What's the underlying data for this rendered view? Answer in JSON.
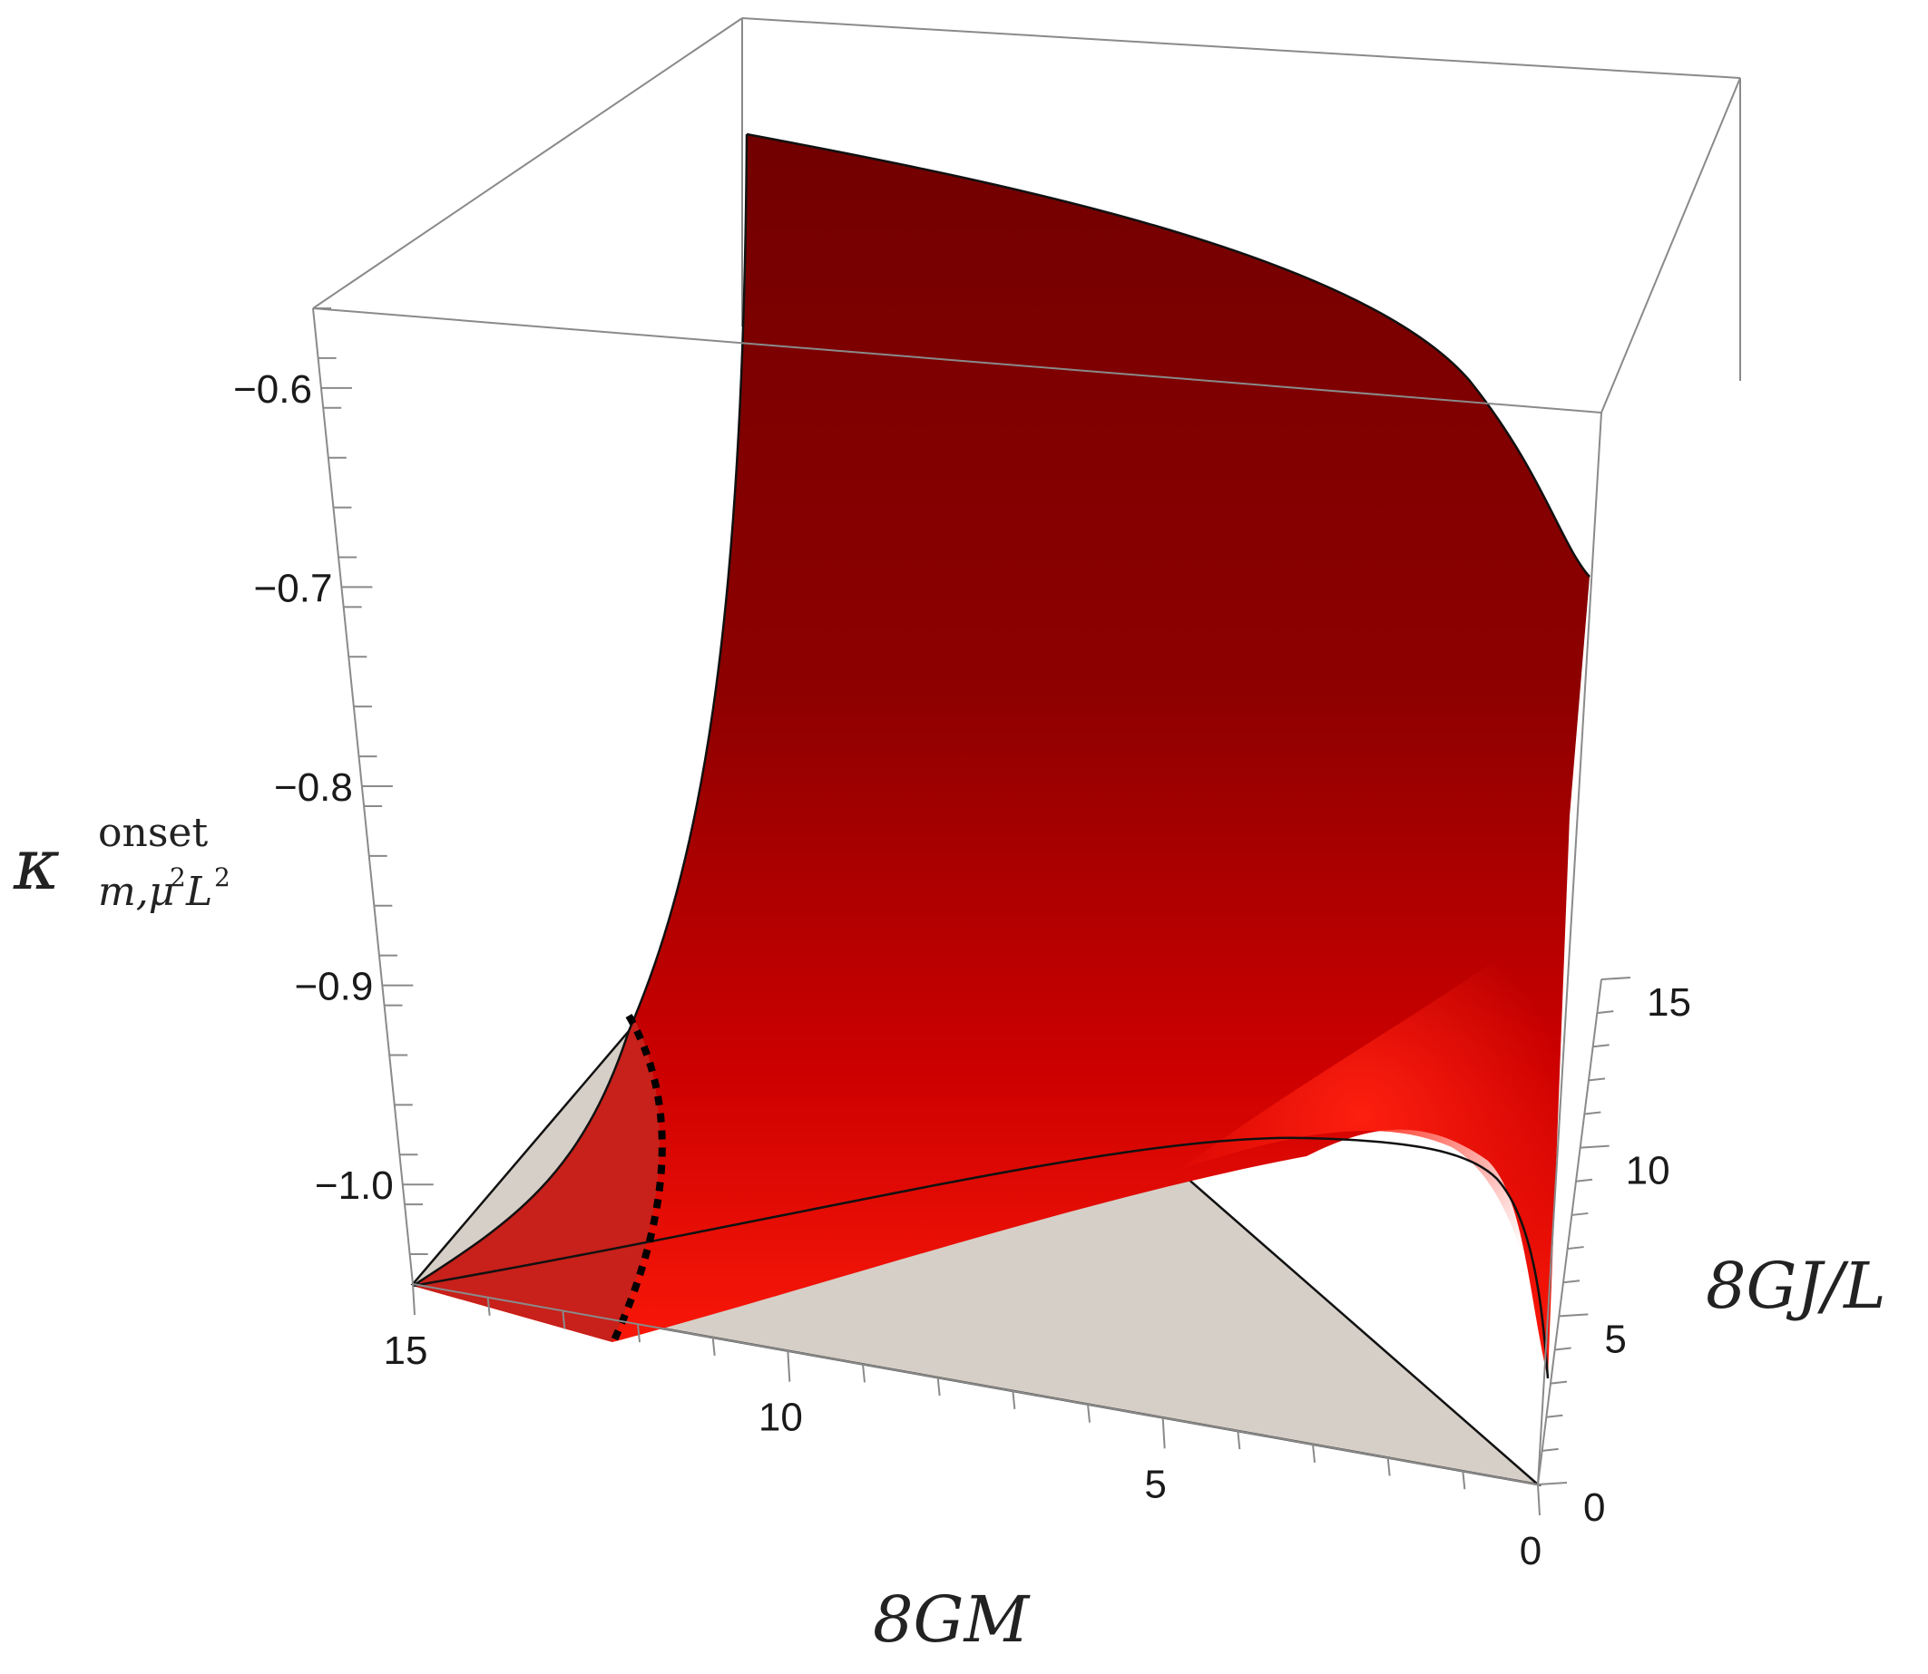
{
  "chart_data": {
    "type": "surface3d",
    "title": "",
    "axes": {
      "x": {
        "label": "8GM",
        "range": [
          0,
          15
        ],
        "ticks": [
          "0",
          "5",
          "10",
          "15"
        ]
      },
      "y": {
        "label": "8GJ/L",
        "range": [
          0,
          15
        ],
        "ticks": [
          "0",
          "5",
          "10",
          "15"
        ]
      },
      "z": {
        "label_symbol": "κ",
        "label_superscript": "onset",
        "label_subscript_var": "m,μ",
        "label_subscript_L": "L",
        "range": [
          -1.05,
          -0.56
        ],
        "ticks": [
          "−0.6",
          "−0.7",
          "−0.8",
          "−0.9",
          "−1.0"
        ]
      }
    },
    "series": [
      {
        "kind": "surface",
        "color_light": "#ff1a0a",
        "color_dark": "#720000",
        "front_edge": [
          {
            "x": 15,
            "y": 0,
            "z": -1.046
          },
          {
            "x": 12.3,
            "y": 0,
            "z": -1.017
          },
          {
            "x": 9.7,
            "y": 3.2,
            "z": -0.975
          },
          {
            "x": 6.4,
            "y": 6.6,
            "z": -0.95
          },
          {
            "x": 3.6,
            "y": 9.0,
            "z": -0.93
          },
          {
            "x": 1.8,
            "y": 10.7,
            "z": -0.95
          },
          {
            "x": 0.2,
            "y": 12.0,
            "z": -0.99
          },
          {
            "x": 0,
            "y": 4.2,
            "z": -1.02
          }
        ],
        "back_edge": [
          {
            "x": 15,
            "y": 15,
            "z": -0.565
          },
          {
            "x": 7.5,
            "y": 15,
            "z": -0.62
          },
          {
            "x": 0,
            "y": 15,
            "z": -0.735
          }
        ]
      },
      {
        "kind": "plane",
        "color": "#d6cfc7",
        "z": -1.02
      },
      {
        "kind": "dotted-curve",
        "color": "#000000"
      }
    ]
  }
}
